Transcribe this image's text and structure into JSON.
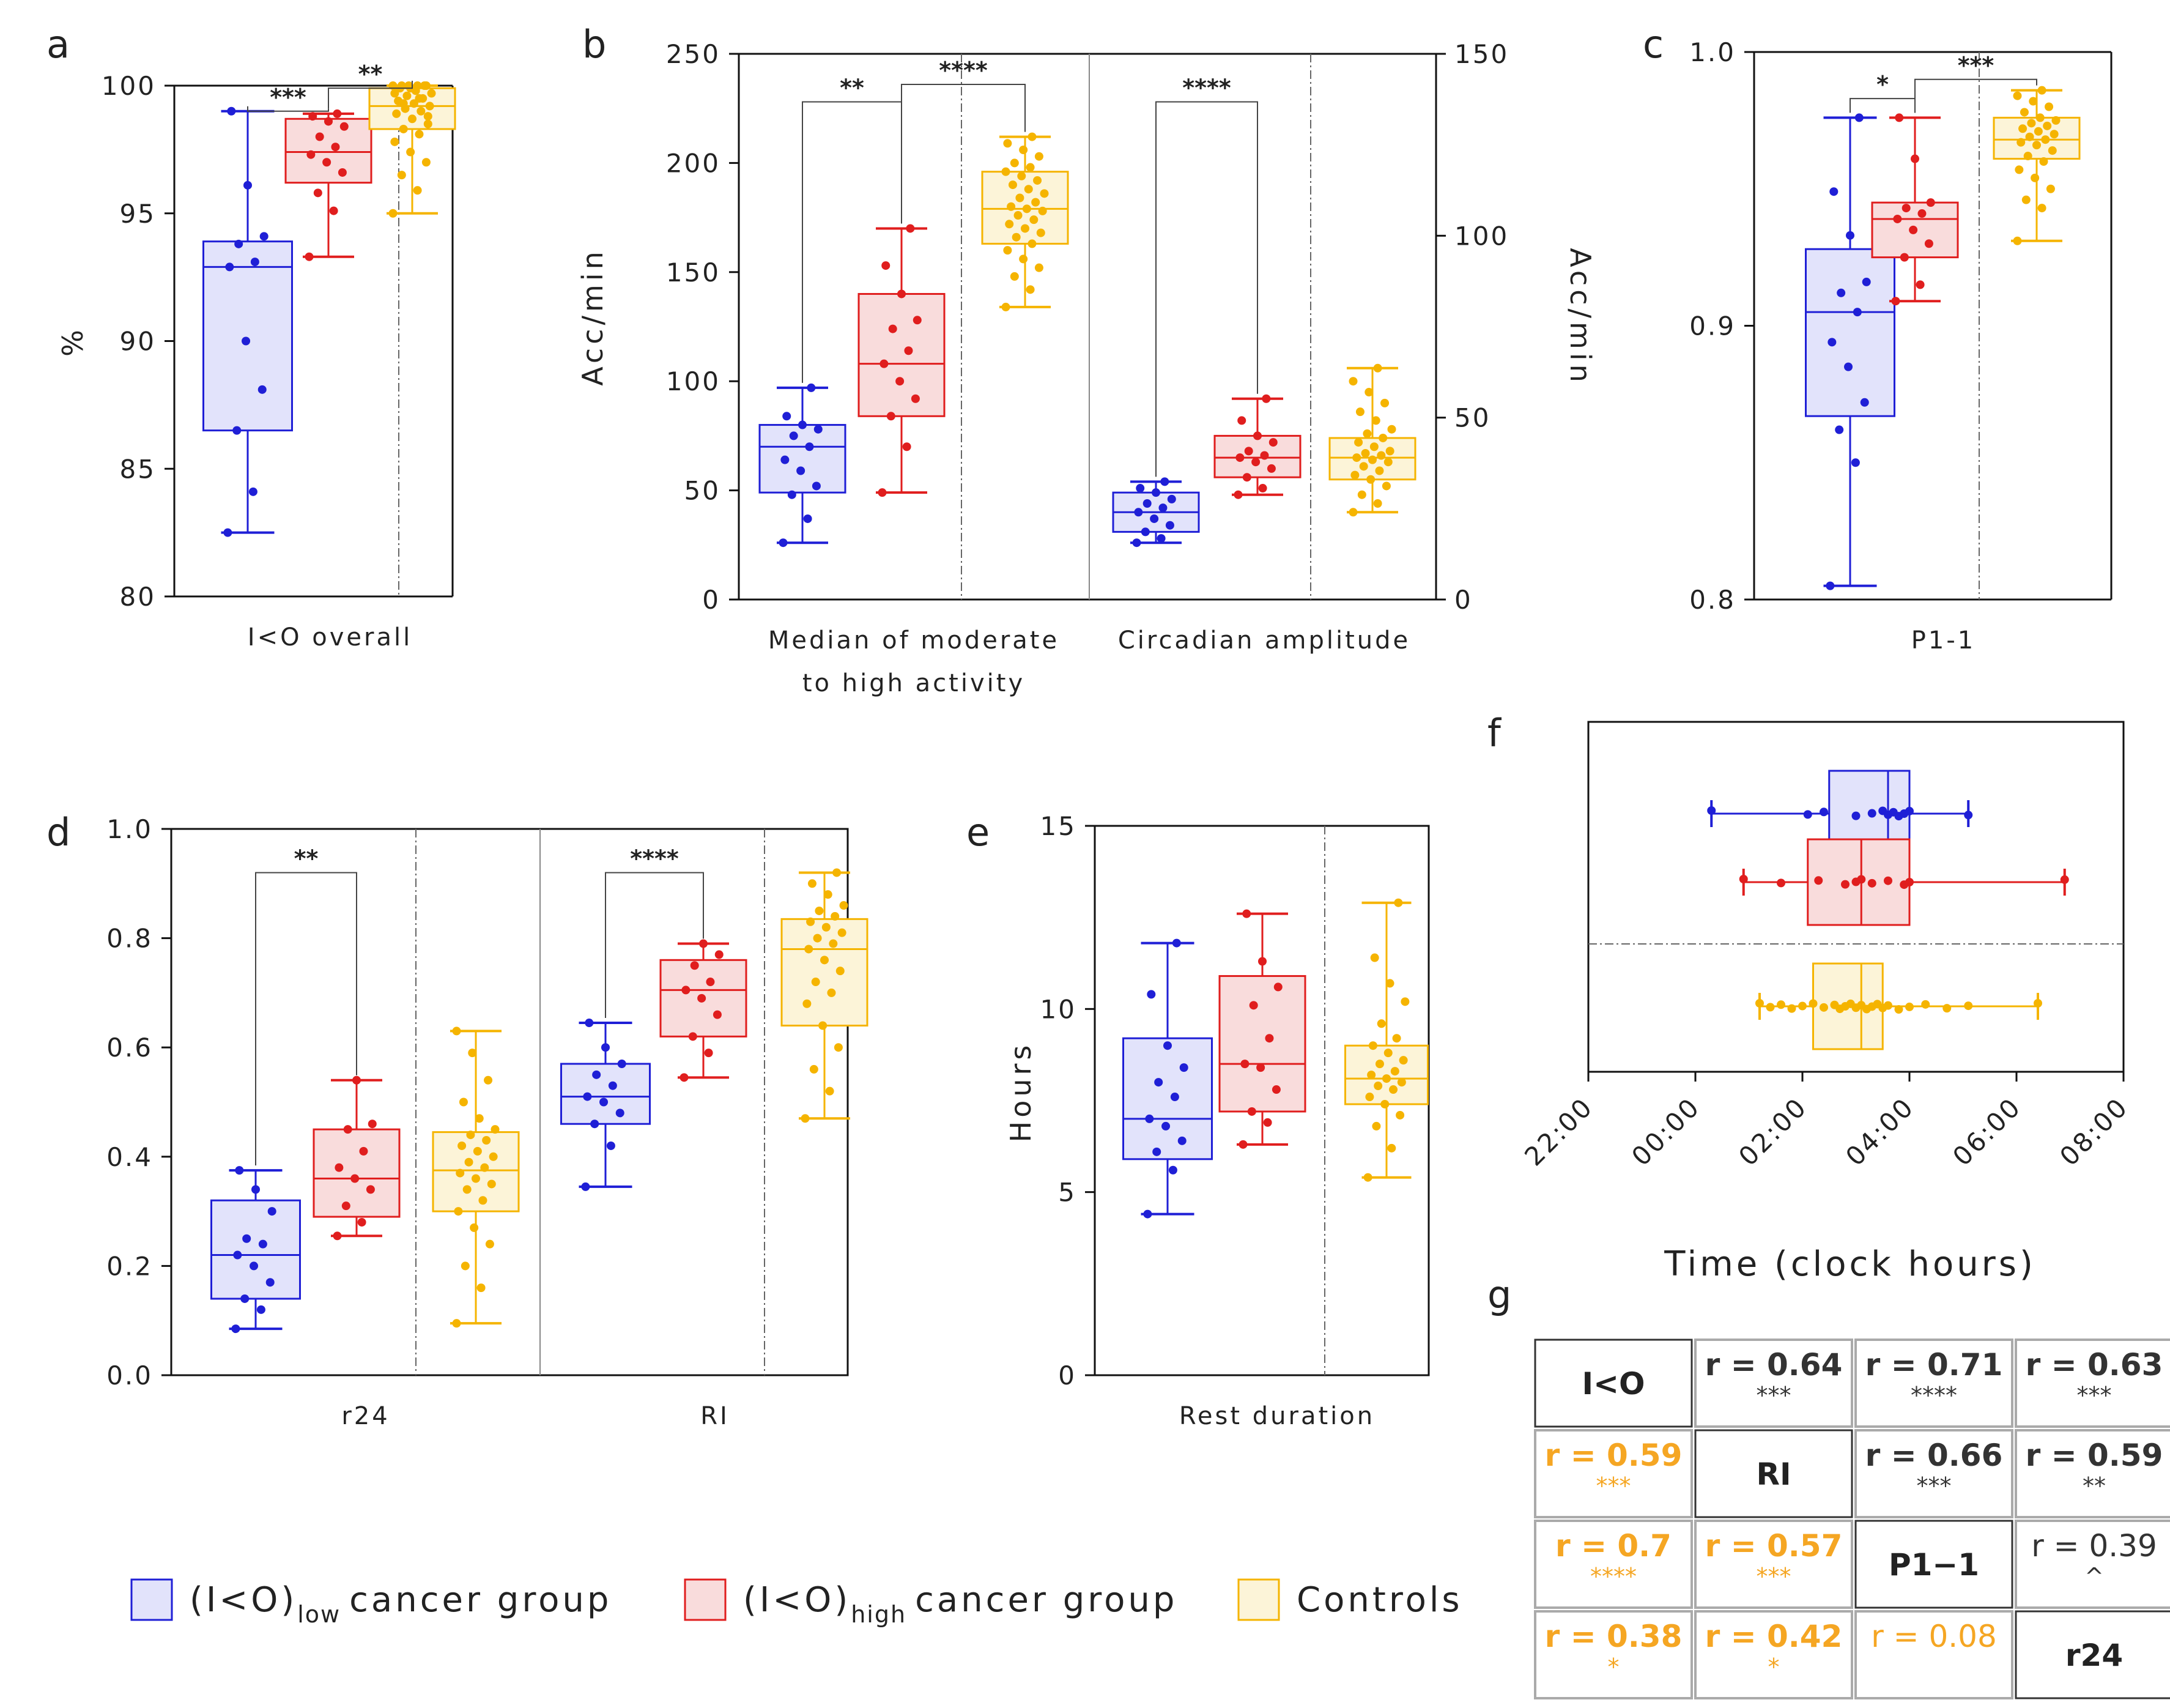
{
  "colors": {
    "low": "#1f1fd6",
    "low_fill": "#e2e3fb",
    "high": "#e01e1e",
    "high_fill": "#f9dcdc",
    "ctrl": "#f5b400",
    "ctrl_fill": "#fcf4d8",
    "axis": "#111111",
    "corr_orange": "#f5a623",
    "corr_dark": "#333333"
  },
  "legend": {
    "low": {
      "main": "(I<O)",
      "sub": "low",
      "rest": "cancer group"
    },
    "high": {
      "main": "(I<O)",
      "sub": "high",
      "rest": "cancer group"
    },
    "ctrl": {
      "main": "Controls"
    }
  },
  "chart_data": [
    {
      "panel": "a",
      "type": "boxplot",
      "ylabel": "%",
      "ylim": [
        80,
        100
      ],
      "yticks": [
        "80",
        "85",
        "90",
        "95",
        "100"
      ],
      "groups": [
        {
          "label": "I<O overall"
        }
      ],
      "boxes": [
        {
          "group": "low",
          "min": 82.5,
          "q1": 86.5,
          "median": 92.9,
          "q3": 93.9,
          "max": 99.0,
          "points": [
            82.5,
            84.1,
            86.5,
            88.1,
            90.0,
            92.9,
            93.1,
            93.8,
            94.1,
            96.1,
            99.0
          ]
        },
        {
          "group": "high",
          "min": 93.3,
          "q1": 96.2,
          "median": 97.4,
          "q3": 98.7,
          "max": 98.9,
          "points": [
            93.3,
            95.1,
            95.8,
            96.6,
            97.0,
            97.3,
            97.6,
            98.0,
            98.4,
            98.6,
            98.8,
            98.9
          ]
        },
        {
          "group": "ctrl",
          "min": 95.0,
          "q1": 98.3,
          "median": 99.2,
          "q3": 99.9,
          "max": 100.0,
          "points": [
            95.0,
            95.9,
            96.5,
            97.0,
            97.4,
            97.8,
            98.1,
            98.3,
            98.5,
            98.7,
            98.9,
            99.0,
            99.1,
            99.2,
            99.3,
            99.4,
            99.5,
            99.6,
            99.7,
            99.8,
            99.9,
            100.0,
            100.0,
            100.0,
            100.0,
            100.0,
            100.0,
            99.9,
            99.7,
            99.5,
            99.3,
            98.8
          ]
        }
      ],
      "significance": [
        {
          "from": "low",
          "to": "high",
          "label": "***",
          "y": 99.0
        },
        {
          "from": "high",
          "to": "ctrl",
          "label": "**",
          "y": 99.9
        }
      ]
    },
    {
      "panel": "b",
      "type": "boxplot",
      "ylabel": "Acc/min",
      "ylabel_right": "Acc/min",
      "ylim": [
        0,
        250
      ],
      "yticks": [
        "0",
        "50",
        "100",
        "150",
        "200",
        "250"
      ],
      "ylim_right": [
        0,
        150
      ],
      "yticks_right": [
        "0",
        "50",
        "100",
        "150"
      ],
      "groups": [
        {
          "label": "Median of moderate",
          "label2": "to high activity"
        },
        {
          "label": "Circadian amplitude"
        }
      ],
      "boxes": [
        {
          "set": 0,
          "group": "low",
          "min": 26,
          "q1": 49,
          "median": 70,
          "q3": 80,
          "max": 97,
          "points": [
            26,
            37,
            48,
            52,
            59,
            64,
            70,
            75,
            78,
            80,
            84,
            97
          ]
        },
        {
          "set": 0,
          "group": "high",
          "min": 49,
          "q1": 84,
          "median": 108,
          "q3": 140,
          "max": 170,
          "points": [
            49,
            70,
            84,
            92,
            100,
            108,
            114,
            124,
            128,
            140,
            153,
            170
          ]
        },
        {
          "set": 0,
          "group": "ctrl",
          "min": 134,
          "q1": 163,
          "median": 179,
          "q3": 196,
          "max": 212,
          "points": [
            134,
            142,
            148,
            152,
            156,
            160,
            163,
            166,
            168,
            170,
            172,
            174,
            176,
            178,
            179,
            180,
            182,
            184,
            186,
            188,
            190,
            192,
            194,
            196,
            198,
            200,
            203,
            206,
            209,
            212
          ]
        },
        {
          "set": 1,
          "group": "low",
          "min": 26,
          "q1": 31,
          "median": 40,
          "q3": 49,
          "max": 54,
          "points": [
            26,
            28,
            31,
            34,
            37,
            40,
            42,
            44,
            46,
            49,
            51,
            54
          ]
        },
        {
          "set": 1,
          "group": "high",
          "min": 48,
          "q1": 56,
          "median": 65,
          "q3": 75,
          "max": 92,
          "points": [
            48,
            51,
            56,
            60,
            63,
            65,
            66,
            68,
            72,
            75,
            82,
            92
          ]
        },
        {
          "set": 1,
          "group": "ctrl",
          "min": 40,
          "q1": 55,
          "median": 65,
          "q3": 74,
          "max": 106,
          "points": [
            40,
            44,
            48,
            52,
            55,
            57,
            59,
            61,
            63,
            64,
            65,
            66,
            67,
            68,
            70,
            72,
            74,
            76,
            78,
            82,
            86,
            90,
            95,
            100,
            106
          ]
        }
      ],
      "significance": [
        {
          "set": 0,
          "from": "low",
          "to": "high",
          "label": "**",
          "y": 228
        },
        {
          "set": 0,
          "from": "high",
          "to": "ctrl",
          "label": "****",
          "y": 236
        },
        {
          "set": 1,
          "from": "low",
          "to": "high",
          "label": "****",
          "y": 228
        }
      ]
    },
    {
      "panel": "c",
      "type": "boxplot",
      "ylim": [
        0.8,
        1.0
      ],
      "yticks": [
        "0.8",
        "0.9",
        "1.0"
      ],
      "groups": [
        {
          "label": "P1-1"
        }
      ],
      "boxes": [
        {
          "group": "low",
          "min": 0.805,
          "q1": 0.867,
          "median": 0.905,
          "q3": 0.928,
          "max": 0.976,
          "points": [
            0.805,
            0.85,
            0.862,
            0.872,
            0.885,
            0.894,
            0.905,
            0.912,
            0.916,
            0.933,
            0.949,
            0.976
          ]
        },
        {
          "group": "high",
          "min": 0.909,
          "q1": 0.925,
          "median": 0.939,
          "q3": 0.945,
          "max": 0.976,
          "points": [
            0.909,
            0.915,
            0.925,
            0.93,
            0.935,
            0.939,
            0.941,
            0.943,
            0.945,
            0.961,
            0.976
          ]
        },
        {
          "group": "ctrl",
          "min": 0.931,
          "q1": 0.961,
          "median": 0.968,
          "q3": 0.976,
          "max": 0.986,
          "points": [
            0.931,
            0.943,
            0.946,
            0.95,
            0.954,
            0.957,
            0.96,
            0.962,
            0.964,
            0.966,
            0.967,
            0.968,
            0.969,
            0.97,
            0.971,
            0.972,
            0.973,
            0.974,
            0.975,
            0.976,
            0.978,
            0.98,
            0.982,
            0.984,
            0.986
          ]
        }
      ],
      "significance": [
        {
          "from": "low",
          "to": "high",
          "label": "*",
          "y": 0.983
        },
        {
          "from": "high",
          "to": "ctrl",
          "label": "***",
          "y": 0.99
        }
      ]
    },
    {
      "panel": "d",
      "type": "boxplot",
      "ylim": [
        0.0,
        1.0
      ],
      "yticks": [
        "0.0",
        "0.2",
        "0.4",
        "0.6",
        "0.8",
        "1.0"
      ],
      "groups": [
        {
          "label": "r24"
        },
        {
          "label": "RI"
        }
      ],
      "boxes": [
        {
          "set": 0,
          "group": "low",
          "min": 0.085,
          "q1": 0.14,
          "median": 0.22,
          "q3": 0.32,
          "max": 0.375,
          "points": [
            0.085,
            0.12,
            0.14,
            0.17,
            0.2,
            0.22,
            0.24,
            0.25,
            0.3,
            0.34,
            0.375
          ]
        },
        {
          "set": 0,
          "group": "high",
          "min": 0.255,
          "q1": 0.29,
          "median": 0.36,
          "q3": 0.45,
          "max": 0.54,
          "points": [
            0.255,
            0.28,
            0.31,
            0.34,
            0.36,
            0.38,
            0.41,
            0.45,
            0.46,
            0.54
          ]
        },
        {
          "set": 0,
          "group": "ctrl",
          "min": 0.095,
          "q1": 0.3,
          "median": 0.375,
          "q3": 0.445,
          "max": 0.63,
          "points": [
            0.095,
            0.16,
            0.2,
            0.24,
            0.27,
            0.3,
            0.32,
            0.34,
            0.35,
            0.36,
            0.37,
            0.38,
            0.39,
            0.4,
            0.41,
            0.42,
            0.43,
            0.44,
            0.45,
            0.47,
            0.5,
            0.54,
            0.59,
            0.63
          ]
        },
        {
          "set": 1,
          "group": "low",
          "min": 0.345,
          "q1": 0.46,
          "median": 0.51,
          "q3": 0.57,
          "max": 0.645,
          "points": [
            0.345,
            0.42,
            0.46,
            0.48,
            0.5,
            0.51,
            0.53,
            0.55,
            0.57,
            0.6,
            0.645
          ]
        },
        {
          "set": 1,
          "group": "high",
          "min": 0.545,
          "q1": 0.62,
          "median": 0.705,
          "q3": 0.76,
          "max": 0.79,
          "points": [
            0.545,
            0.59,
            0.62,
            0.66,
            0.69,
            0.705,
            0.72,
            0.75,
            0.77,
            0.79
          ]
        },
        {
          "set": 1,
          "group": "ctrl",
          "min": 0.47,
          "q1": 0.64,
          "median": 0.78,
          "q3": 0.835,
          "max": 0.92,
          "points": [
            0.47,
            0.52,
            0.56,
            0.6,
            0.64,
            0.68,
            0.7,
            0.72,
            0.74,
            0.76,
            0.78,
            0.79,
            0.8,
            0.81,
            0.82,
            0.83,
            0.84,
            0.85,
            0.86,
            0.88,
            0.9,
            0.92
          ]
        }
      ],
      "significance": [
        {
          "set": 0,
          "from": "low",
          "to": "high",
          "label": "**",
          "y": 0.92
        },
        {
          "set": 1,
          "from": "low",
          "to": "high",
          "label": "****",
          "y": 0.92
        }
      ]
    },
    {
      "panel": "e",
      "type": "boxplot",
      "ylabel": "Hours",
      "ylim": [
        0,
        15
      ],
      "yticks": [
        "0",
        "5",
        "10",
        "15"
      ],
      "groups": [
        {
          "label": "Rest duration"
        }
      ],
      "boxes": [
        {
          "group": "low",
          "min": 4.4,
          "q1": 5.9,
          "median": 7.0,
          "q3": 9.2,
          "max": 11.8,
          "points": [
            4.4,
            5.6,
            6.1,
            6.4,
            6.8,
            7.0,
            7.6,
            8.0,
            8.4,
            9.0,
            10.4,
            11.8
          ]
        },
        {
          "group": "high",
          "min": 6.3,
          "q1": 7.2,
          "median": 8.5,
          "q3": 10.9,
          "max": 12.6,
          "points": [
            6.3,
            6.9,
            7.2,
            7.8,
            8.4,
            8.5,
            9.2,
            10.1,
            10.6,
            11.3,
            12.6
          ]
        },
        {
          "group": "ctrl",
          "min": 5.4,
          "q1": 7.4,
          "median": 8.1,
          "q3": 9.0,
          "max": 12.9,
          "points": [
            5.4,
            6.2,
            6.8,
            7.1,
            7.4,
            7.6,
            7.8,
            7.9,
            8.0,
            8.1,
            8.2,
            8.3,
            8.5,
            8.6,
            8.8,
            9.0,
            9.2,
            9.6,
            10.2,
            10.7,
            11.4,
            12.9
          ]
        }
      ]
    },
    {
      "panel": "f",
      "type": "boxplot-horizontal",
      "xlabel": "Time (clock hours)",
      "xlim": [
        -2,
        8
      ],
      "xticks": [
        "22:00",
        "00:00",
        "02:00",
        "04:00",
        "06:00",
        "08:00"
      ],
      "boxes": [
        {
          "group": "low",
          "min": 0.3,
          "q1": 2.5,
          "median": 3.6,
          "q3": 4.0,
          "max": 5.1,
          "points": [
            0.3,
            2.1,
            2.4,
            3.0,
            3.3,
            3.5,
            3.6,
            3.7,
            3.8,
            3.9,
            4.0,
            5.1
          ]
        },
        {
          "group": "high",
          "min": 0.9,
          "q1": 2.1,
          "median": 3.1,
          "q3": 4.0,
          "max": 6.9,
          "points": [
            0.9,
            1.6,
            2.3,
            2.8,
            3.0,
            3.1,
            3.3,
            3.6,
            3.9,
            4.0,
            6.9
          ]
        },
        {
          "group": "ctrl",
          "min": 1.2,
          "q1": 2.2,
          "median": 3.1,
          "q3": 3.5,
          "max": 6.4,
          "points": [
            1.2,
            1.4,
            1.6,
            1.8,
            2.0,
            2.2,
            2.4,
            2.6,
            2.7,
            2.8,
            2.9,
            3.0,
            3.1,
            3.2,
            3.3,
            3.4,
            3.5,
            3.6,
            3.8,
            4.0,
            4.3,
            4.7,
            5.1,
            6.4
          ]
        }
      ]
    },
    {
      "panel": "g",
      "type": "table",
      "variables": [
        "I<O",
        "RI",
        "P1−1",
        "r24"
      ],
      "cells": [
        [
          "I<O",
          "r = 0.64|***",
          "r = 0.71|****",
          "r = 0.63|***"
        ],
        [
          "r = 0.59|***",
          "RI",
          "r = 0.66|***",
          "r = 0.59|**"
        ],
        [
          "r = 0.7|****",
          "r = 0.57|***",
          "P1−1",
          "r = 0.39|^"
        ],
        [
          "r = 0.38|*",
          "r = 0.42|*",
          "r = 0.08|",
          "r24"
        ]
      ]
    }
  ]
}
